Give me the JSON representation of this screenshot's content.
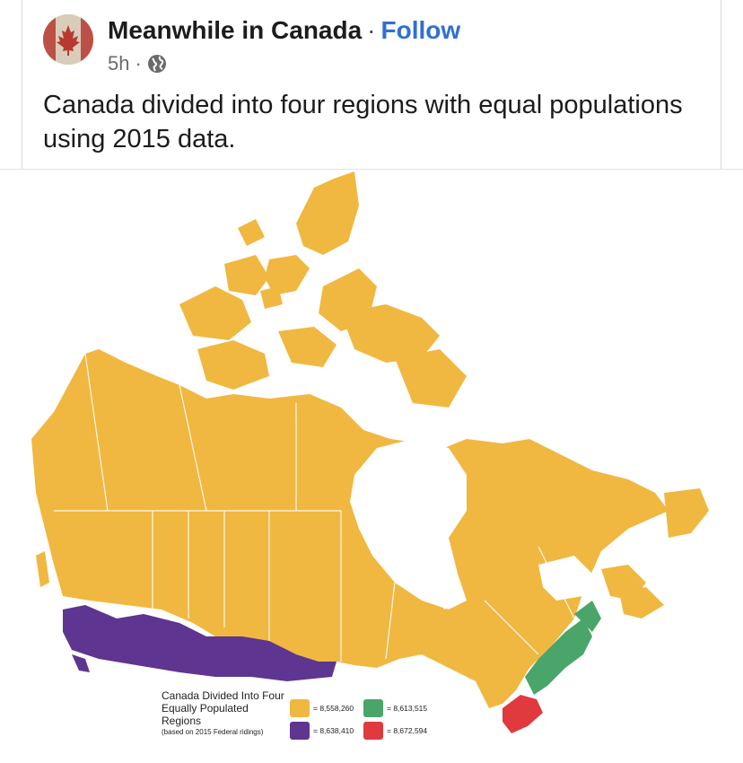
{
  "post": {
    "page_name": "Meanwhile in Canada",
    "separator": "·",
    "follow_label": "Follow",
    "time": "5h",
    "meta_separator": "·",
    "audience_icon": "globe-icon",
    "text": "Canada divided into four regions with equal populations using 2015 data."
  },
  "map": {
    "legend": {
      "title": "Canada Divided Into Four Equally Populated Regions",
      "subtitle": "(based on 2015 Federal ridings)",
      "items": [
        {
          "color": "#f0b840",
          "label": "= 8,558,260"
        },
        {
          "color": "#4aa56a",
          "label": "= 8,613,515"
        },
        {
          "color": "#5e3590",
          "label": "= 8,638,410"
        },
        {
          "color": "#e03a3e",
          "label": "= 8,672,594"
        }
      ]
    },
    "colors": {
      "region_yellow": "#f0b840",
      "region_purple": "#5e3590",
      "region_green": "#4aa56a",
      "region_red": "#e03a3e",
      "boundary": "#ffffff"
    }
  }
}
